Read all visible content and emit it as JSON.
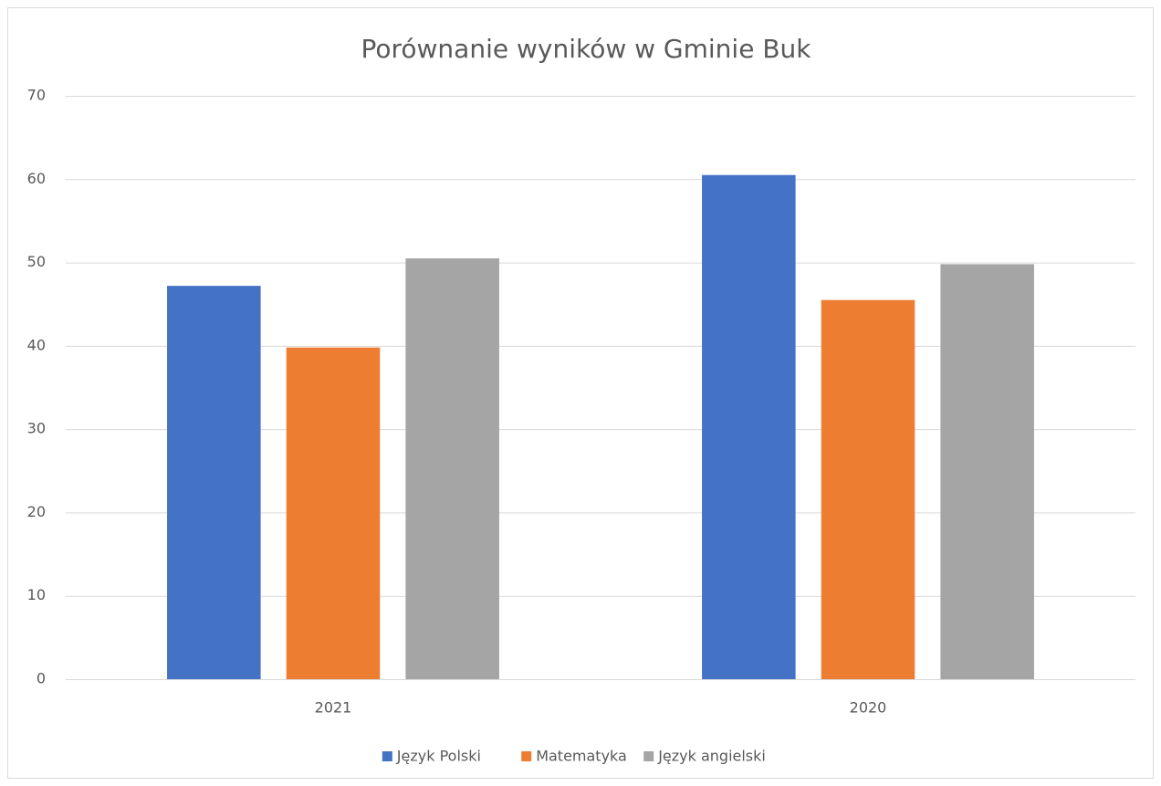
{
  "chart_data": {
    "type": "bar",
    "title": "Porównanie wyników w Gminie Buk",
    "categories": [
      "2021",
      "2020"
    ],
    "series": [
      {
        "name": "Język Polski",
        "color": "#4472c4",
        "values": [
          47.2,
          60.5
        ]
      },
      {
        "name": "Matematyka",
        "color": "#ed7d31",
        "values": [
          39.8,
          45.5
        ]
      },
      {
        "name": "Język angielski",
        "color": "#a5a5a5",
        "values": [
          50.5,
          49.8
        ]
      }
    ],
    "ylim": [
      0,
      70
    ],
    "yticks": [
      0,
      10,
      20,
      30,
      40,
      50,
      60,
      70
    ],
    "grid": true,
    "legend": "bottom"
  }
}
